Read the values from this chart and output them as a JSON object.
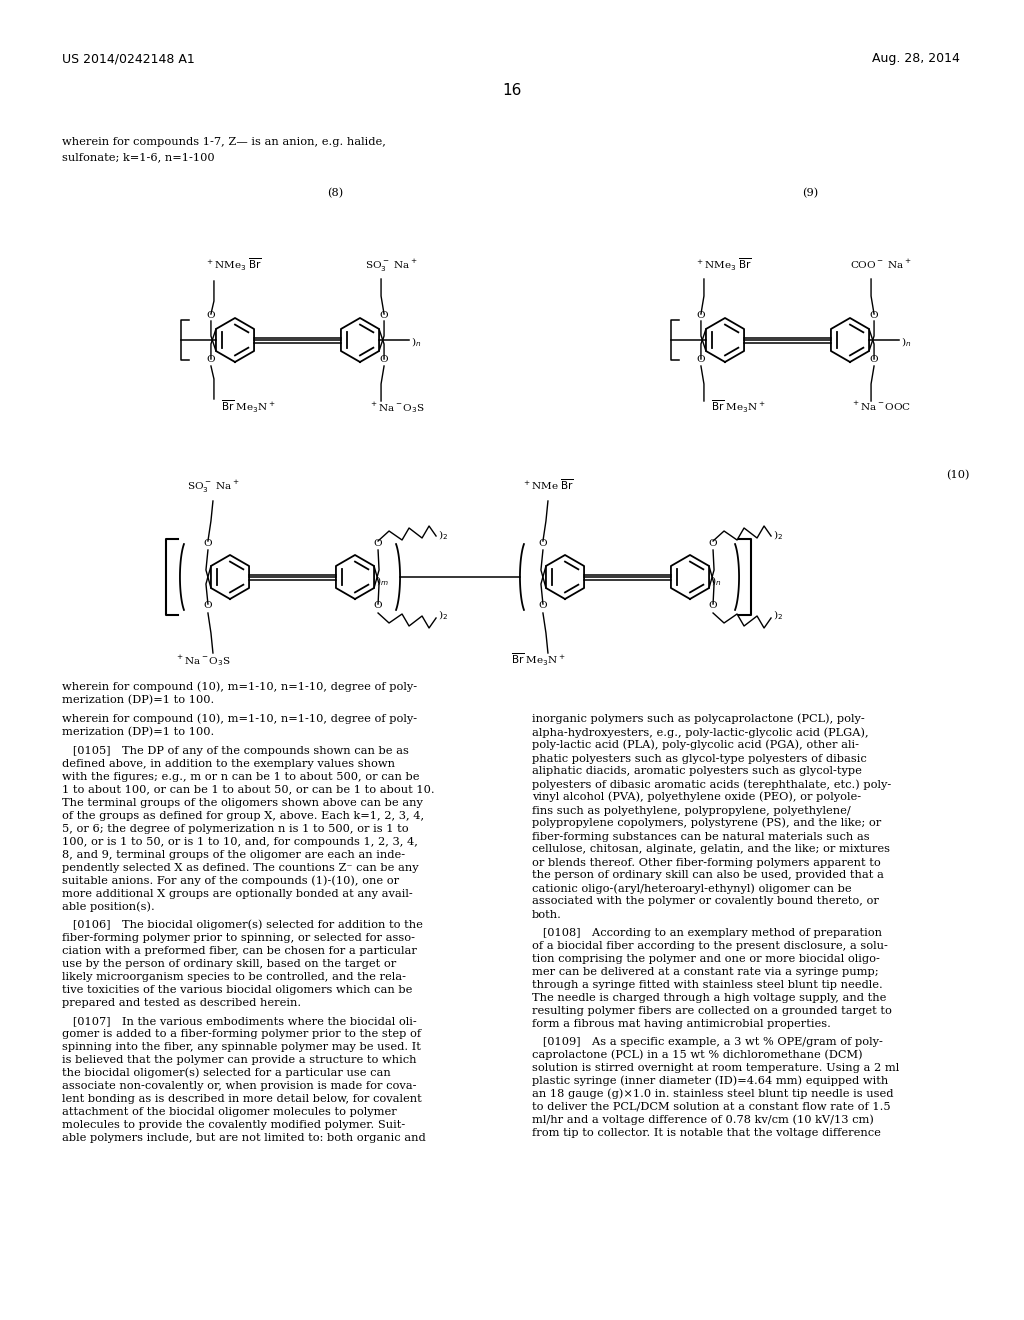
{
  "background_color": "#ffffff",
  "header_left": "US 2014/0242148 A1",
  "header_right": "Aug. 28, 2014",
  "page_number": "16",
  "intro_line1": "wherein for compounds 1-7, Z— is an anion, e.g. halide,",
  "intro_line2": "sulfonate; k=1-6, n=1-100",
  "compound8_label": "(8)",
  "compound9_label": "(9)",
  "compound10_label": "(10)",
  "body_left": [
    "wherein for compound (10), m=1-10, n=1-10, degree of poly-",
    "merization (DP)=1 to 100.",
    "",
    "   [0105] The DP of any of the compounds shown can be as",
    "defined above, in addition to the exemplary values shown",
    "with the figures; e.g., m or n can be 1 to about 500, or can be",
    "1 to about 100, or can be 1 to about 50, or can be 1 to about 10.",
    "The terminal groups of the oligomers shown above can be any",
    "of the groups as defined for group X, above. Each k=1, 2, 3, 4,",
    "5, or 6; the degree of polymerization n is 1 to 500, or is 1 to",
    "100, or is 1 to 50, or is 1 to 10, and, for compounds 1, 2, 3, 4,",
    "8, and 9, terminal groups of the oligomer are each an inde-",
    "pendently selected X as defined. The countions Z⁻ can be any",
    "suitable anions. For any of the compounds (1)-(10), one or",
    "more additional X groups are optionally bonded at any avail-",
    "able position(s).",
    "",
    "   [0106] The biocidal oligomer(s) selected for addition to the",
    "fiber-forming polymer prior to spinning, or selected for asso-",
    "ciation with a preformed fiber, can be chosen for a particular",
    "use by the person of ordinary skill, based on the target or",
    "likely microorganism species to be controlled, and the rela-",
    "tive toxicities of the various biocidal oligomers which can be",
    "prepared and tested as described herein.",
    "",
    "   [0107] In the various embodiments where the biocidal oli-",
    "gomer is added to a fiber-forming polymer prior to the step of",
    "spinning into the fiber, any spinnable polymer may be used. It",
    "is believed that the polymer can provide a structure to which",
    "the biocidal oligomer(s) selected for a particular use can",
    "associate non-covalently or, when provision is made for cova-",
    "lent bonding as is described in more detail below, for covalent",
    "attachment of the biocidal oligomer molecules to polymer",
    "molecules to provide the covalently modified polymer. Suit-",
    "able polymers include, but are not limited to: both organic and"
  ],
  "body_right": [
    "inorganic polymers such as polycaprolactone (PCL), poly-",
    "alpha-hydroxyesters, e.g., poly-lactic-glycolic acid (PLGA),",
    "poly-lactic acid (PLA), poly-glycolic acid (PGA), other ali-",
    "phatic polyesters such as glycol-type polyesters of dibasic",
    "aliphatic diacids, aromatic polyesters such as glycol-type",
    "polyesters of dibasic aromatic acids (terephthalate, etc.) poly-",
    "vinyl alcohol (PVA), polyethylene oxide (PEO), or polyole-",
    "fins such as polyethylene, polypropylene, polyethylene/",
    "polypropylene copolymers, polystyrene (PS), and the like; or",
    "fiber-forming substances can be natural materials such as",
    "cellulose, chitosan, alginate, gelatin, and the like; or mixtures",
    "or blends thereof. Other fiber-forming polymers apparent to",
    "the person of ordinary skill can also be used, provided that a",
    "cationic oligo-(aryl/heteroaryl-ethynyl) oligomer can be",
    "associated with the polymer or covalently bound thereto, or",
    "both.",
    "",
    "   [0108] According to an exemplary method of preparation",
    "of a biocidal fiber according to the present disclosure, a solu-",
    "tion comprising the polymer and one or more biocidal oligo-",
    "mer can be delivered at a constant rate via a syringe pump;",
    "through a syringe fitted with stainless steel blunt tip needle.",
    "The needle is charged through a high voltage supply, and the",
    "resulting polymer fibers are collected on a grounded target to",
    "form a fibrous mat having antimicrobial properties.",
    "",
    "   [0109] As a specific example, a 3 wt % OPE/gram of poly-",
    "caprolactone (PCL) in a 15 wt % dichloromethane (DCM)",
    "solution is stirred overnight at room temperature. Using a 2 ml",
    "plastic syringe (inner diameter (ID)=4.64 mm) equipped with",
    "an 18 gauge (g)×1.0 in. stainless steel blunt tip needle is used",
    "to deliver the PCL/DCM solution at a constant flow rate of 1.5",
    "ml/hr and a voltage difference of 0.78 kv/cm (10 kV/13 cm)",
    "from tip to collector. It is notable that the voltage difference"
  ]
}
